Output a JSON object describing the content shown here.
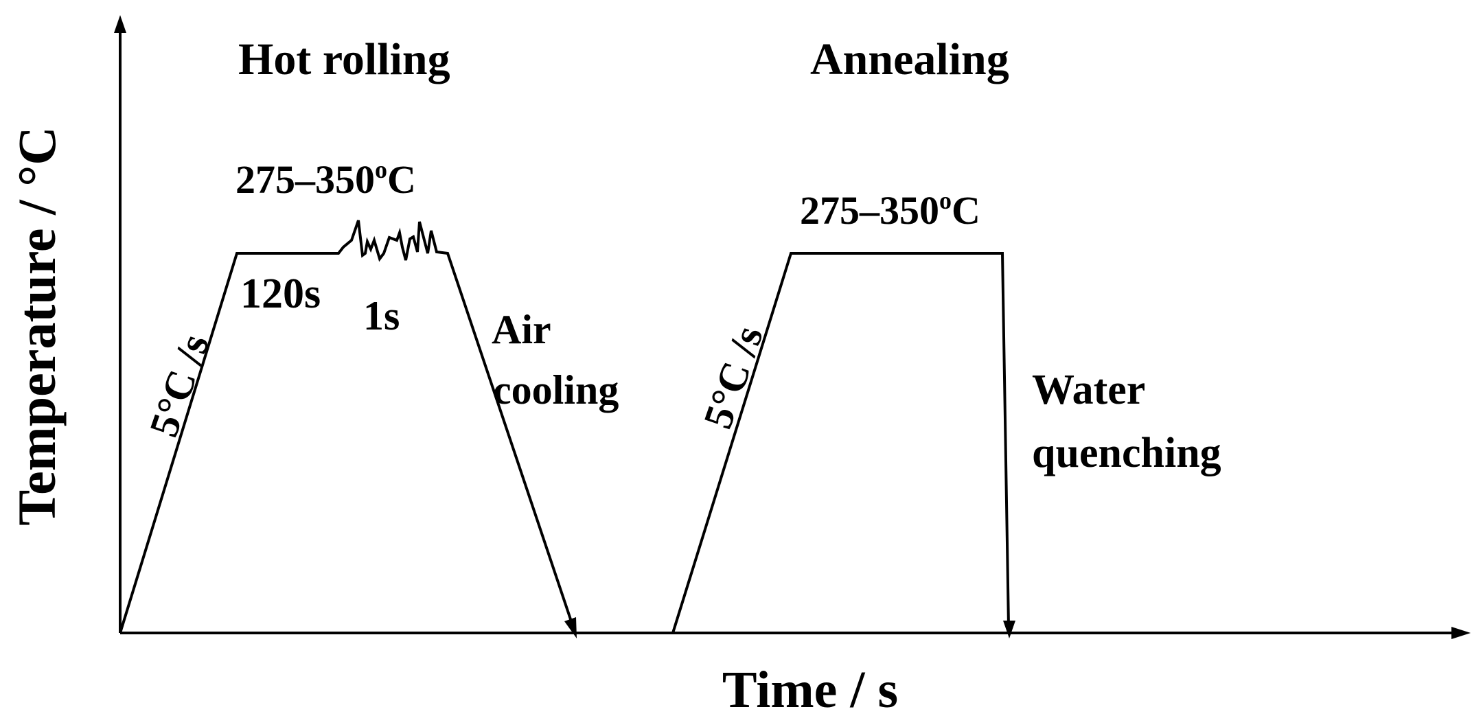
{
  "axes": {
    "y_label": "Temperature / °C",
    "x_label": "Time / s"
  },
  "hot_rolling": {
    "title": "Hot rolling",
    "temperature": "275–350",
    "temperature_sup": "o",
    "temperature_unit": "C",
    "heating_rate": "5°C /s",
    "hold_time": "120s",
    "pass_time": "1s",
    "cooling_line1": "Air",
    "cooling_line2": "cooling"
  },
  "annealing": {
    "title": "Annealing",
    "temperature": "275–350",
    "temperature_sup": "o",
    "temperature_unit": "C",
    "heating_rate": "5°C /s",
    "cooling_line1": "Water",
    "cooling_line2": "quenching"
  },
  "colors": {
    "line": "#000000",
    "background": "#ffffff"
  }
}
